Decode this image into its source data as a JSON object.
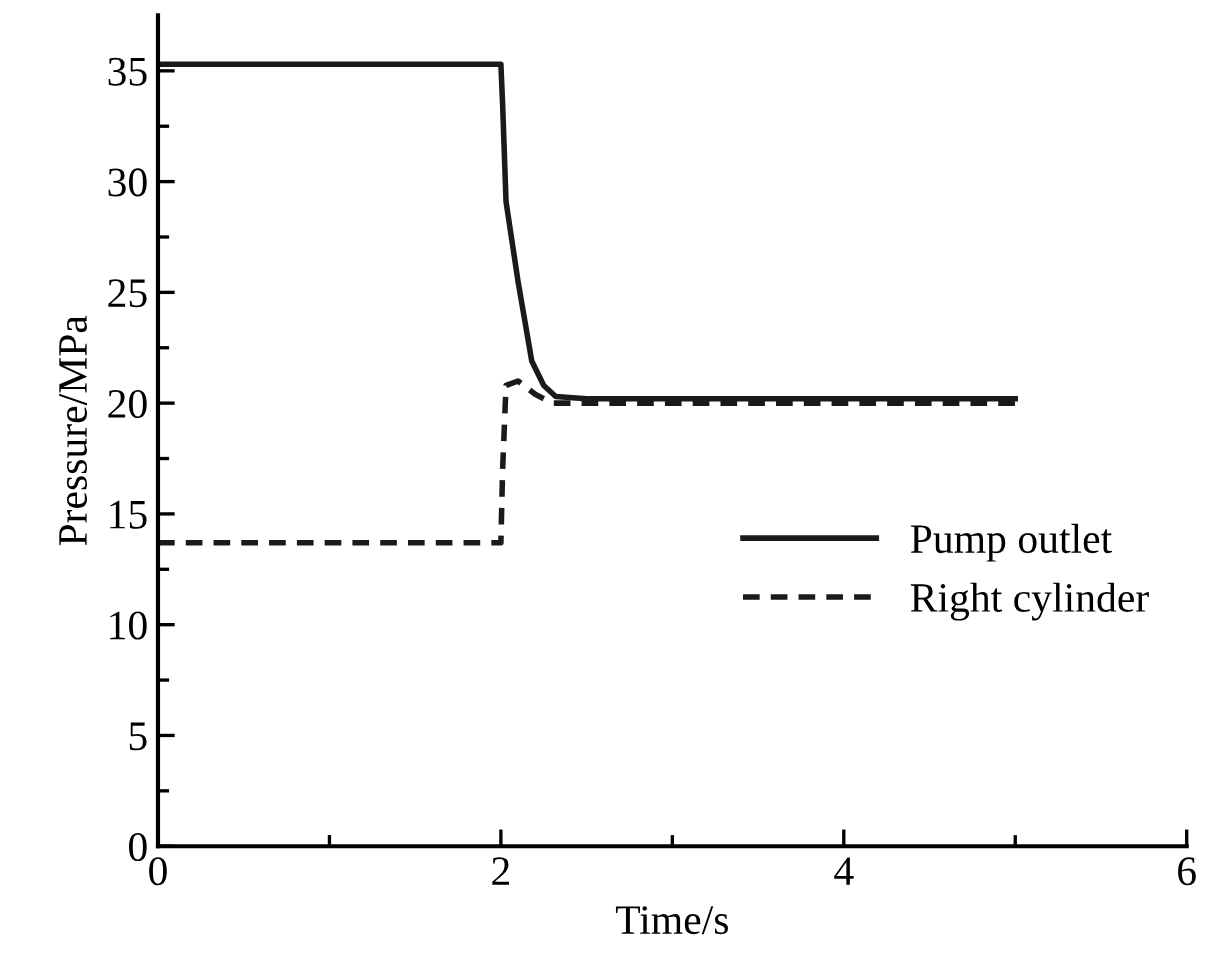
{
  "chart_data": {
    "type": "line",
    "xlabel": "Time/s",
    "ylabel": "Pressure/MPa",
    "xlim": [
      0,
      6
    ],
    "xticks": [
      0,
      2,
      4,
      6
    ],
    "ylim": [
      0,
      37.5
    ],
    "yticks": [
      0,
      5,
      10,
      15,
      20,
      25,
      30,
      35
    ],
    "grid": false,
    "legend": "right",
    "marker": "none",
    "series": [
      {
        "name": "Pump outlet",
        "color": "#1a1a1a",
        "line_style": "solid",
        "x": [
          0,
          2.0,
          2.01,
          2.03,
          2.1,
          2.18,
          2.25,
          2.32,
          2.5,
          5
        ],
        "values": [
          35.3,
          35.3,
          33.5,
          29.1,
          25.5,
          21.9,
          20.8,
          20.3,
          20.2,
          20.2
        ]
      },
      {
        "name": "Right cylinder",
        "color": "#1a1a1a",
        "line_style": "dashed",
        "x": [
          0,
          2.0,
          2.01,
          2.03,
          2.1,
          2.2,
          2.3,
          2.5,
          5
        ],
        "values": [
          13.7,
          13.7,
          17.0,
          20.8,
          21.0,
          20.4,
          20.0,
          20.0,
          20.0
        ]
      }
    ]
  }
}
